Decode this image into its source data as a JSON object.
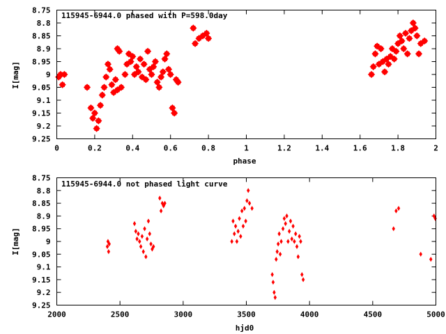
{
  "chart_data": [
    {
      "type": "scatter",
      "title": "115945-6944.0 phased with P=598.0day",
      "xlabel": "phase",
      "ylabel": "I[mag]",
      "xlim": [
        0,
        2
      ],
      "ylim": [
        8.75,
        9.25
      ],
      "y_inverted": true,
      "x_ticks": [
        "0",
        "0.2",
        "0.4",
        "0.6",
        "0.8",
        "1",
        "1.2",
        "1.4",
        "1.6",
        "1.8",
        "2"
      ],
      "y_ticks": [
        "8.75",
        "8.8",
        "8.85",
        "8.9",
        "8.95",
        "9",
        "9.05",
        "9.1",
        "9.15",
        "9.2",
        "9.25"
      ],
      "marker": "star",
      "color": "#ff0000",
      "grid": false,
      "legend": "none",
      "x": [
        0.01,
        0.02,
        0.03,
        0.04,
        0.16,
        0.18,
        0.19,
        0.2,
        0.21,
        0.22,
        0.23,
        0.24,
        0.25,
        0.26,
        0.27,
        0.28,
        0.29,
        0.3,
        0.31,
        0.32,
        0.32,
        0.33,
        0.34,
        0.36,
        0.37,
        0.38,
        0.39,
        0.4,
        0.41,
        0.42,
        0.43,
        0.44,
        0.45,
        0.46,
        0.47,
        0.48,
        0.49,
        0.5,
        0.51,
        0.52,
        0.53,
        0.54,
        0.55,
        0.56,
        0.57,
        0.58,
        0.59,
        0.6,
        0.61,
        0.62,
        0.63,
        0.64,
        0.72,
        0.73,
        0.75,
        0.77,
        0.79,
        0.8,
        1.66,
        1.67,
        1.68,
        1.69,
        1.7,
        1.71,
        1.72,
        1.73,
        1.74,
        1.75,
        1.76,
        1.77,
        1.78,
        1.79,
        1.8,
        1.81,
        1.82,
        1.83,
        1.84,
        1.85,
        1.86,
        1.87,
        1.88,
        1.89,
        1.9,
        1.91,
        1.92,
        1.94
      ],
      "y": [
        9.01,
        9.0,
        9.04,
        9.0,
        9.05,
        9.13,
        9.17,
        9.15,
        9.21,
        9.18,
        9.12,
        9.08,
        9.05,
        9.01,
        8.96,
        8.98,
        9.04,
        9.07,
        9.02,
        8.9,
        9.06,
        8.91,
        9.05,
        9.0,
        8.96,
        8.92,
        8.95,
        8.93,
        9.0,
        8.97,
        8.99,
        8.94,
        9.01,
        8.96,
        9.02,
        8.91,
        8.98,
        9.0,
        8.97,
        8.95,
        9.03,
        9.05,
        9.01,
        8.99,
        8.94,
        8.92,
        8.98,
        9.0,
        9.13,
        9.15,
        9.02,
        9.03,
        8.82,
        8.88,
        8.86,
        8.85,
        8.84,
        8.86,
        9.0,
        8.97,
        8.92,
        8.89,
        8.96,
        8.9,
        8.95,
        8.99,
        8.94,
        8.96,
        8.93,
        8.9,
        8.94,
        8.91,
        8.88,
        8.85,
        8.87,
        8.9,
        8.84,
        8.92,
        8.86,
        8.83,
        8.8,
        8.82,
        8.85,
        8.92,
        8.88,
        8.87
      ]
    },
    {
      "type": "scatter",
      "title": "115945-6944.0 not phased light curve",
      "xlabel": "hjd0",
      "ylabel": "I[mag]",
      "xlim": [
        2000,
        5000
      ],
      "ylim": [
        8.75,
        9.25
      ],
      "y_inverted": true,
      "x_ticks": [
        "2000",
        "2500",
        "3000",
        "3500",
        "4000",
        "4500",
        "5000"
      ],
      "y_ticks": [
        "8.75",
        "8.8",
        "8.85",
        "8.9",
        "8.95",
        "9",
        "9.05",
        "9.1",
        "9.15",
        "9.2",
        "9.25"
      ],
      "marker": "diamond",
      "color": "#ff0000",
      "grid": false,
      "legend": "none",
      "x": [
        2400,
        2405,
        2410,
        2415,
        2615,
        2625,
        2635,
        2645,
        2655,
        2665,
        2675,
        2685,
        2695,
        2705,
        2715,
        2725,
        2735,
        2745,
        2755,
        2765,
        2815,
        2825,
        2835,
        2845,
        2855,
        3385,
        3395,
        3405,
        3415,
        3425,
        3435,
        3445,
        3455,
        3465,
        3475,
        3485,
        3495,
        3505,
        3515,
        3525,
        3545,
        3705,
        3712,
        3720,
        3728,
        3736,
        3744,
        3752,
        3760,
        3768,
        3776,
        3790,
        3800,
        3810,
        3820,
        3830,
        3840,
        3850,
        3860,
        3870,
        3880,
        3890,
        3900,
        3910,
        3920,
        3930,
        3940,
        3950,
        4665,
        4685,
        4705,
        4880,
        4960,
        4985,
        4995
      ],
      "y": [
        9.02,
        9.0,
        9.04,
        9.01,
        8.93,
        8.96,
        8.99,
        8.97,
        9.0,
        9.02,
        8.98,
        9.04,
        8.95,
        9.06,
        8.99,
        8.92,
        8.97,
        9.01,
        9.03,
        9.02,
        8.83,
        8.88,
        8.85,
        8.86,
        8.85,
        9.0,
        8.92,
        8.97,
        8.94,
        9.0,
        8.96,
        8.91,
        8.98,
        8.88,
        8.94,
        8.87,
        8.92,
        8.84,
        8.8,
        8.85,
        8.87,
        9.13,
        9.16,
        9.2,
        9.22,
        9.07,
        9.04,
        9.01,
        8.97,
        9.05,
        9.0,
        8.95,
        8.91,
        8.93,
        8.9,
        9.0,
        8.96,
        8.92,
        8.99,
        8.94,
        9.0,
        8.97,
        9.02,
        9.06,
        8.98,
        9.0,
        9.13,
        9.15,
        8.95,
        8.88,
        8.87,
        9.05,
        9.07,
        8.9,
        8.91
      ]
    }
  ]
}
